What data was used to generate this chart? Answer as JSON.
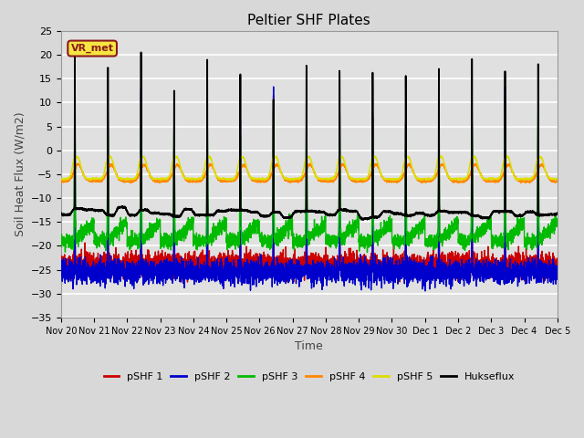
{
  "title": "Peltier SHF Plates",
  "xlabel": "Time",
  "ylabel": "Soil Heat Flux (W/m2)",
  "ylim": [
    -35,
    25
  ],
  "background_color": "#d8d8d8",
  "plot_bg_color": "#e0e0e0",
  "grid_color": "#ffffff",
  "annotation_text": "VR_met",
  "annotation_bg": "#f5e642",
  "annotation_border": "#8b1a1a",
  "x_tick_labels": [
    "Nov 20",
    "Nov 21",
    "Nov 22",
    "Nov 23",
    "Nov 24",
    "Nov 25",
    "Nov 26",
    "Nov 27",
    "Nov 28",
    "Nov 29",
    "Nov 30",
    "Dec 1",
    "Dec 2",
    "Dec 3",
    "Dec 4",
    "Dec 5"
  ],
  "series_colors": {
    "pSHF 1": "#cc0000",
    "pSHF 2": "#0000cc",
    "pSHF 3": "#00bb00",
    "pSHF 4": "#ff8800",
    "pSHF 5": "#dddd00",
    "Hukseflux": "#000000"
  },
  "n_days": 15,
  "ppd": 288
}
